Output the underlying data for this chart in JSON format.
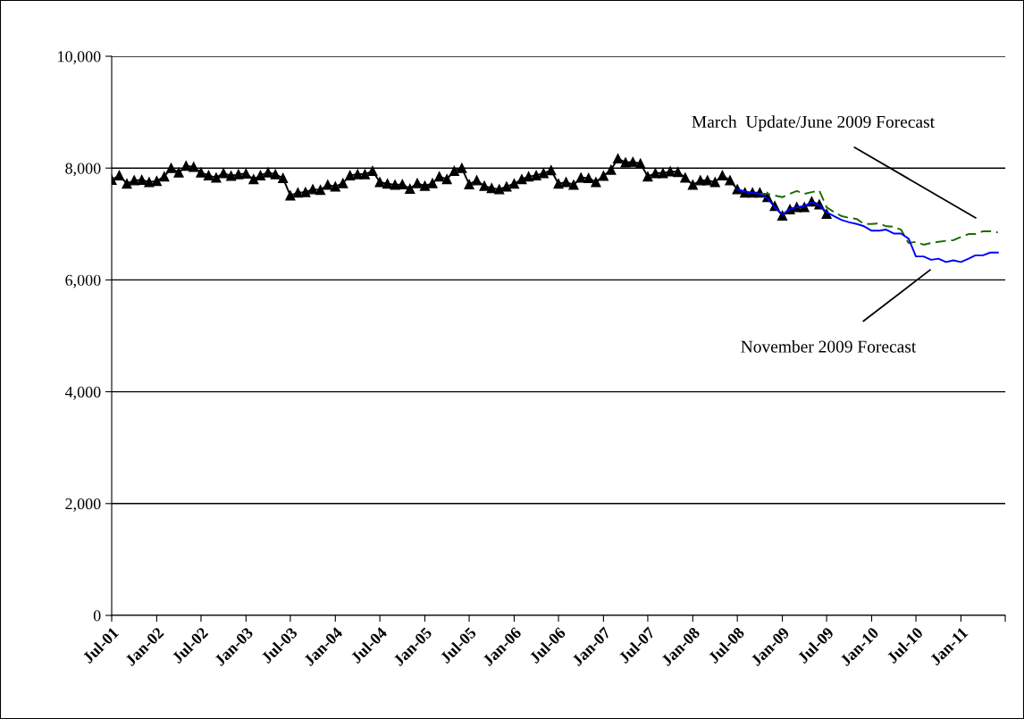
{
  "chart_data": {
    "type": "line",
    "x": [
      "2001-07",
      "2001-08",
      "2001-09",
      "2001-10",
      "2001-11",
      "2001-12",
      "2002-01",
      "2002-02",
      "2002-03",
      "2002-04",
      "2002-05",
      "2002-06",
      "2002-07",
      "2002-08",
      "2002-09",
      "2002-10",
      "2002-11",
      "2002-12",
      "2003-01",
      "2003-02",
      "2003-03",
      "2003-04",
      "2003-05",
      "2003-06",
      "2003-07",
      "2003-08",
      "2003-09",
      "2003-10",
      "2003-11",
      "2003-12",
      "2004-01",
      "2004-02",
      "2004-03",
      "2004-04",
      "2004-05",
      "2004-06",
      "2004-07",
      "2004-08",
      "2004-09",
      "2004-10",
      "2004-11",
      "2004-12",
      "2005-01",
      "2005-02",
      "2005-03",
      "2005-04",
      "2005-05",
      "2005-06",
      "2005-07",
      "2005-08",
      "2005-09",
      "2005-10",
      "2005-11",
      "2005-12",
      "2006-01",
      "2006-02",
      "2006-03",
      "2006-04",
      "2006-05",
      "2006-06",
      "2006-07",
      "2006-08",
      "2006-09",
      "2006-10",
      "2006-11",
      "2006-12",
      "2007-01",
      "2007-02",
      "2007-03",
      "2007-04",
      "2007-05",
      "2007-06",
      "2007-07",
      "2007-08",
      "2007-09",
      "2007-10",
      "2007-11",
      "2007-12",
      "2008-01",
      "2008-02",
      "2008-03",
      "2008-04",
      "2008-05",
      "2008-06",
      "2008-07",
      "2008-08",
      "2008-09",
      "2008-10",
      "2008-11",
      "2008-12",
      "2009-01",
      "2009-02",
      "2009-03",
      "2009-04",
      "2009-05",
      "2009-06",
      "2009-07",
      "2009-08",
      "2009-09",
      "2009-10",
      "2009-11",
      "2009-12",
      "2010-01",
      "2010-02",
      "2010-03",
      "2010-04",
      "2010-05",
      "2010-06",
      "2010-07",
      "2010-08",
      "2010-09",
      "2010-10",
      "2010-11",
      "2010-12",
      "2011-01",
      "2011-02",
      "2011-03",
      "2011-04",
      "2011-05",
      "2011-06"
    ],
    "series": [
      {
        "color": "#000000",
        "marker": "triangle",
        "line_style": "solid",
        "values": [
          7790,
          7870,
          7720,
          7780,
          7790,
          7750,
          7770,
          7850,
          8000,
          7920,
          8040,
          8020,
          7920,
          7870,
          7830,
          7910,
          7860,
          7890,
          7900,
          7800,
          7870,
          7920,
          7890,
          7820,
          7510,
          7560,
          7570,
          7620,
          7610,
          7700,
          7670,
          7730,
          7870,
          7890,
          7890,
          7950,
          7750,
          7720,
          7700,
          7710,
          7630,
          7730,
          7680,
          7730,
          7850,
          7800,
          7950,
          8000,
          7710,
          7780,
          7680,
          7640,
          7620,
          7670,
          7720,
          7800,
          7850,
          7870,
          7910,
          7960,
          7720,
          7750,
          7700,
          7830,
          7820,
          7750,
          7860,
          7970,
          8170,
          8100,
          8110,
          8080,
          7850,
          7910,
          7910,
          7940,
          7930,
          7830,
          7700,
          7780,
          7780,
          7750,
          7870,
          7780,
          7620,
          7560,
          7560,
          7560,
          7480,
          7320,
          7150,
          7260,
          7300,
          7300,
          7400,
          7350,
          7180,
          null,
          null,
          null,
          null,
          null,
          null,
          null,
          null,
          null,
          null,
          null,
          null,
          null,
          null,
          null,
          null,
          null,
          null,
          null,
          null,
          null,
          null,
          null
        ]
      },
      {
        "color": "#1a6b00",
        "marker": "none",
        "line_style": "dashed",
        "values": [
          null,
          null,
          null,
          null,
          null,
          null,
          null,
          null,
          null,
          null,
          null,
          null,
          null,
          null,
          null,
          null,
          null,
          null,
          null,
          null,
          null,
          null,
          null,
          null,
          null,
          null,
          null,
          null,
          null,
          null,
          null,
          null,
          null,
          null,
          null,
          null,
          null,
          null,
          null,
          null,
          null,
          null,
          null,
          null,
          null,
          null,
          null,
          null,
          null,
          null,
          null,
          null,
          null,
          null,
          null,
          null,
          null,
          null,
          null,
          null,
          null,
          null,
          null,
          null,
          null,
          null,
          null,
          null,
          null,
          null,
          null,
          null,
          null,
          null,
          null,
          null,
          null,
          null,
          null,
          null,
          null,
          null,
          null,
          null,
          null,
          null,
          null,
          7540,
          7540,
          7510,
          7480,
          7540,
          7590,
          7540,
          7570,
          7600,
          7300,
          7210,
          7140,
          7110,
          7090,
          7000,
          7000,
          7010,
          6960,
          6950,
          6900,
          6660,
          6680,
          6630,
          6660,
          6680,
          6700,
          6710,
          6770,
          6820,
          6820,
          6870,
          6870,
          6850
        ]
      },
      {
        "color": "#0000ff",
        "marker": "none",
        "line_style": "solid",
        "values": [
          null,
          null,
          null,
          null,
          null,
          null,
          null,
          null,
          null,
          null,
          null,
          null,
          null,
          null,
          null,
          null,
          null,
          null,
          null,
          null,
          null,
          null,
          null,
          null,
          null,
          null,
          null,
          null,
          null,
          null,
          null,
          null,
          null,
          null,
          null,
          null,
          null,
          null,
          null,
          null,
          null,
          null,
          null,
          null,
          null,
          null,
          null,
          null,
          null,
          null,
          null,
          null,
          null,
          null,
          null,
          null,
          null,
          null,
          null,
          null,
          null,
          null,
          null,
          null,
          null,
          null,
          null,
          null,
          null,
          null,
          null,
          null,
          null,
          null,
          null,
          null,
          null,
          null,
          null,
          null,
          null,
          null,
          null,
          null,
          7620,
          7580,
          7560,
          7540,
          7460,
          7300,
          7170,
          7270,
          7300,
          7320,
          7390,
          7340,
          7210,
          7140,
          7070,
          7030,
          7000,
          6960,
          6880,
          6880,
          6900,
          6830,
          6830,
          6740,
          6420,
          6420,
          6360,
          6380,
          6320,
          6350,
          6320,
          6380,
          6440,
          6440,
          6490,
          6490
        ]
      }
    ],
    "ylim": [
      0,
      10000
    ],
    "yticks": [
      {
        "value": 0,
        "label": "0"
      },
      {
        "value": 2000,
        "label": "2,000"
      },
      {
        "value": 4000,
        "label": "4,000"
      },
      {
        "value": 6000,
        "label": "6,000"
      },
      {
        "value": 8000,
        "label": "8,000"
      },
      {
        "value": 10000,
        "label": "10,000"
      }
    ],
    "xlim": [
      "2001-07",
      "2011-07"
    ],
    "xticks": [
      {
        "value": "2001-07",
        "label": "Jul-01"
      },
      {
        "value": "2002-01",
        "label": "Jan-02"
      },
      {
        "value": "2002-07",
        "label": "Jul-02"
      },
      {
        "value": "2003-01",
        "label": "Jan-03"
      },
      {
        "value": "2003-07",
        "label": "Jul-03"
      },
      {
        "value": "2004-01",
        "label": "Jan-04"
      },
      {
        "value": "2004-07",
        "label": "Jul-04"
      },
      {
        "value": "2005-01",
        "label": "Jan-05"
      },
      {
        "value": "2005-07",
        "label": "Jul-05"
      },
      {
        "value": "2006-01",
        "label": "Jan-06"
      },
      {
        "value": "2006-07",
        "label": "Jul-06"
      },
      {
        "value": "2007-01",
        "label": "Jan-07"
      },
      {
        "value": "2007-07",
        "label": "Jul-07"
      },
      {
        "value": "2008-01",
        "label": "Jan-08"
      },
      {
        "value": "2008-07",
        "label": "Jul-08"
      },
      {
        "value": "2009-01",
        "label": "Jan-09"
      },
      {
        "value": "2009-07",
        "label": "Jul-09"
      },
      {
        "value": "2010-01",
        "label": "Jan-10"
      },
      {
        "value": "2010-07",
        "label": "Jul-10"
      },
      {
        "value": "2011-01",
        "label": "Jan-11"
      },
      {
        "value": "2011-07",
        "label": null
      }
    ],
    "grid": "y",
    "legend": false,
    "annotations": [
      "March  Update/June 2009 Forecast",
      "November 2009 Forecast"
    ]
  }
}
